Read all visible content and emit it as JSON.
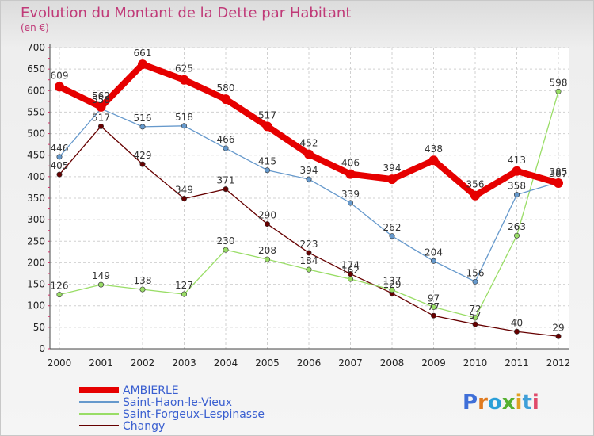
{
  "chart_data": {
    "type": "line",
    "title": "Evolution du Montant de la Dette par Habitant",
    "subtitle": "(en €)",
    "x": [
      "2000",
      "2001",
      "2002",
      "2003",
      "2004",
      "2005",
      "2006",
      "2007",
      "2008",
      "2009",
      "2010",
      "2011",
      "2012"
    ],
    "ylim": [
      0,
      700
    ],
    "yticks": [
      0,
      50,
      100,
      150,
      200,
      250,
      300,
      350,
      400,
      450,
      500,
      550,
      600,
      650,
      700
    ],
    "grid": true,
    "legend_position": "bottom-left",
    "series": [
      {
        "name": "AMBIERLE",
        "color": "#e60000",
        "values": [
          609,
          562,
          661,
          625,
          580,
          517,
          452,
          406,
          394,
          438,
          356,
          413,
          385
        ],
        "labels": [
          "609",
          "562",
          "661",
          "625",
          "580",
          "517",
          "452",
          "406",
          "394",
          "438",
          "356",
          "413",
          "385"
        ]
      },
      {
        "name": "Saint-Haon-le-Vieux",
        "color": "#6699cc",
        "values": [
          446,
          558,
          516,
          518,
          466,
          415,
          394,
          339,
          262,
          204,
          156,
          358,
          387
        ],
        "labels": [
          "446",
          "558",
          "516",
          "518",
          "466",
          "415",
          "394",
          "339",
          "262",
          "204",
          "156",
          "358",
          "387"
        ]
      },
      {
        "name": "Saint-Forgeux-Lespinasse",
        "color": "#99dd66",
        "values": [
          126,
          149,
          138,
          127,
          230,
          208,
          184,
          162,
          137,
          97,
          72,
          263,
          598
        ],
        "labels": [
          "126",
          "149",
          "138",
          "127",
          "230",
          "208",
          "184",
          "162",
          "137",
          "97",
          "72",
          "263",
          "598"
        ]
      },
      {
        "name": "Changy",
        "color": "#660000",
        "values": [
          405,
          517,
          429,
          349,
          371,
          290,
          223,
          174,
          129,
          77,
          57,
          40,
          29
        ],
        "labels": [
          "405",
          "517",
          "429",
          "349",
          "371",
          "290",
          "223",
          "174",
          "129",
          "77",
          "57",
          "40",
          "29"
        ]
      }
    ]
  },
  "brand": {
    "text": "Proxiti"
  }
}
